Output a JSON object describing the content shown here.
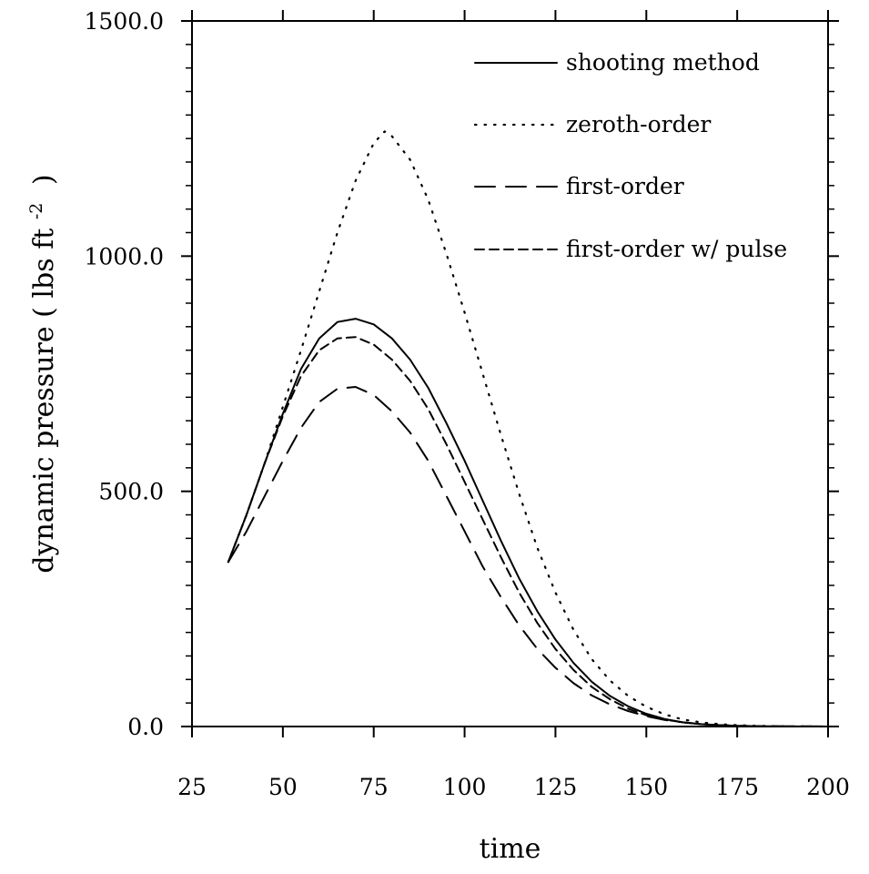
{
  "chart_data": {
    "type": "line",
    "xlabel": "time",
    "ylabel": {
      "main": "dynamic pressure",
      "unit_open": "( lbs ft",
      "unit_exp": "-2",
      "unit_close": ")"
    },
    "xlim": [
      25,
      200
    ],
    "ylim": [
      0,
      1500
    ],
    "x_ticks": [
      25,
      50,
      75,
      100,
      125,
      150,
      175,
      200
    ],
    "x_tick_labels": [
      "25",
      "50",
      "75",
      "100",
      "125",
      "150",
      "175",
      "200"
    ],
    "y_ticks": [
      0,
      500,
      1000,
      1500
    ],
    "y_tick_labels": [
      "0.0",
      "500.0",
      "1000.0",
      "1500.0"
    ],
    "grid": false,
    "legend_position": "top-right",
    "series": [
      {
        "name": "shooting method",
        "style": "solid",
        "points": [
          [
            35,
            350
          ],
          [
            40,
            450
          ],
          [
            45,
            560
          ],
          [
            50,
            665
          ],
          [
            55,
            760
          ],
          [
            60,
            825
          ],
          [
            65,
            860
          ],
          [
            70,
            867
          ],
          [
            75,
            855
          ],
          [
            80,
            825
          ],
          [
            85,
            780
          ],
          [
            90,
            720
          ],
          [
            95,
            645
          ],
          [
            100,
            565
          ],
          [
            105,
            480
          ],
          [
            110,
            395
          ],
          [
            115,
            315
          ],
          [
            120,
            245
          ],
          [
            125,
            185
          ],
          [
            130,
            135
          ],
          [
            135,
            95
          ],
          [
            140,
            65
          ],
          [
            145,
            43
          ],
          [
            150,
            27
          ],
          [
            155,
            16
          ],
          [
            160,
            9
          ],
          [
            165,
            5
          ],
          [
            170,
            3
          ],
          [
            175,
            1.5
          ],
          [
            180,
            0.8
          ],
          [
            185,
            0.4
          ],
          [
            190,
            0.2
          ],
          [
            195,
            0.1
          ],
          [
            200,
            0
          ]
        ]
      },
      {
        "name": "zeroth-order",
        "style": "dotted",
        "points": [
          [
            35,
            350
          ],
          [
            40,
            450
          ],
          [
            45,
            560
          ],
          [
            50,
            680
          ],
          [
            55,
            800
          ],
          [
            60,
            925
          ],
          [
            65,
            1050
          ],
          [
            70,
            1160
          ],
          [
            75,
            1240
          ],
          [
            78,
            1265
          ],
          [
            80,
            1255
          ],
          [
            85,
            1205
          ],
          [
            90,
            1120
          ],
          [
            95,
            1005
          ],
          [
            100,
            880
          ],
          [
            105,
            750
          ],
          [
            110,
            620
          ],
          [
            115,
            495
          ],
          [
            120,
            380
          ],
          [
            125,
            285
          ],
          [
            130,
            205
          ],
          [
            135,
            143
          ],
          [
            140,
            98
          ],
          [
            145,
            65
          ],
          [
            150,
            42
          ],
          [
            155,
            26
          ],
          [
            160,
            15
          ],
          [
            165,
            9
          ],
          [
            170,
            5
          ],
          [
            175,
            3
          ],
          [
            180,
            1.5
          ],
          [
            185,
            0.8
          ],
          [
            190,
            0.4
          ],
          [
            195,
            0.2
          ],
          [
            200,
            0
          ]
        ]
      },
      {
        "name": "first-order",
        "style": "long-dash",
        "points": [
          [
            35,
            350
          ],
          [
            40,
            415
          ],
          [
            45,
            490
          ],
          [
            50,
            565
          ],
          [
            55,
            635
          ],
          [
            60,
            690
          ],
          [
            65,
            718
          ],
          [
            70,
            722
          ],
          [
            75,
            705
          ],
          [
            80,
            670
          ],
          [
            85,
            625
          ],
          [
            90,
            565
          ],
          [
            95,
            490
          ],
          [
            100,
            415
          ],
          [
            105,
            340
          ],
          [
            110,
            275
          ],
          [
            115,
            215
          ],
          [
            120,
            165
          ],
          [
            125,
            125
          ],
          [
            130,
            92
          ],
          [
            135,
            66
          ],
          [
            140,
            47
          ],
          [
            145,
            33
          ],
          [
            150,
            22
          ],
          [
            155,
            14
          ],
          [
            160,
            9
          ],
          [
            165,
            5
          ],
          [
            170,
            3
          ],
          [
            175,
            1.5
          ],
          [
            180,
            0.8
          ],
          [
            185,
            0.4
          ],
          [
            190,
            0.2
          ],
          [
            195,
            0.1
          ],
          [
            200,
            0
          ]
        ]
      },
      {
        "name": "first-order w/ pulse",
        "style": "short-dash",
        "points": [
          [
            35,
            350
          ],
          [
            40,
            450
          ],
          [
            45,
            560
          ],
          [
            50,
            660
          ],
          [
            55,
            745
          ],
          [
            60,
            800
          ],
          [
            65,
            825
          ],
          [
            70,
            828
          ],
          [
            75,
            812
          ],
          [
            80,
            780
          ],
          [
            85,
            735
          ],
          [
            90,
            675
          ],
          [
            95,
            600
          ],
          [
            100,
            520
          ],
          [
            105,
            440
          ],
          [
            110,
            360
          ],
          [
            115,
            285
          ],
          [
            120,
            220
          ],
          [
            125,
            165
          ],
          [
            130,
            120
          ],
          [
            135,
            84
          ],
          [
            140,
            58
          ],
          [
            145,
            38
          ],
          [
            150,
            24
          ],
          [
            155,
            15
          ],
          [
            160,
            9
          ],
          [
            165,
            5
          ],
          [
            170,
            3
          ],
          [
            175,
            1.5
          ],
          [
            180,
            0.8
          ],
          [
            185,
            0.4
          ],
          [
            190,
            0.2
          ],
          [
            195,
            0.1
          ],
          [
            200,
            0
          ]
        ]
      }
    ]
  }
}
